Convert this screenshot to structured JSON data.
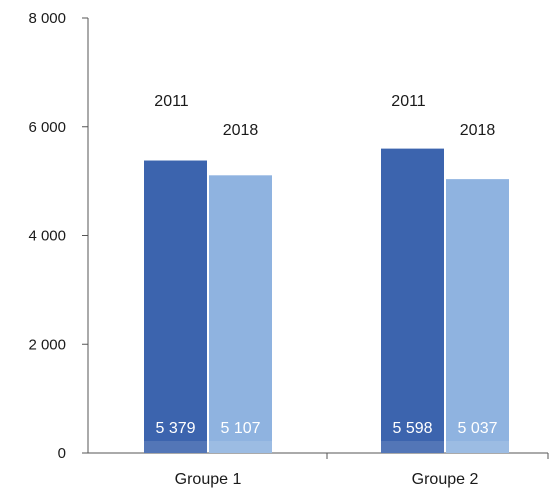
{
  "chart_data": {
    "type": "bar",
    "categories": [
      "Groupe 1",
      "Groupe 2"
    ],
    "series": [
      {
        "name": "2011",
        "values": [
          5379,
          5598
        ],
        "labels": [
          "5 379",
          "5 598"
        ],
        "color": "#3c64ae"
      },
      {
        "name": "2018",
        "values": [
          5107,
          5037
        ],
        "labels": [
          "5 107",
          "5 037"
        ],
        "color": "#8fb3e0"
      }
    ],
    "yticks": [
      {
        "value": 0,
        "label": "0"
      },
      {
        "value": 2000,
        "label": "2 000"
      },
      {
        "value": 4000,
        "label": "4 000"
      },
      {
        "value": 6000,
        "label": "6 000"
      },
      {
        "value": 8000,
        "label": "8 000"
      }
    ],
    "ylim": [
      0,
      8000
    ],
    "title": "",
    "xlabel": "",
    "ylabel": "",
    "grid": false,
    "legend": "none",
    "series_labels_placement": "above bars"
  }
}
